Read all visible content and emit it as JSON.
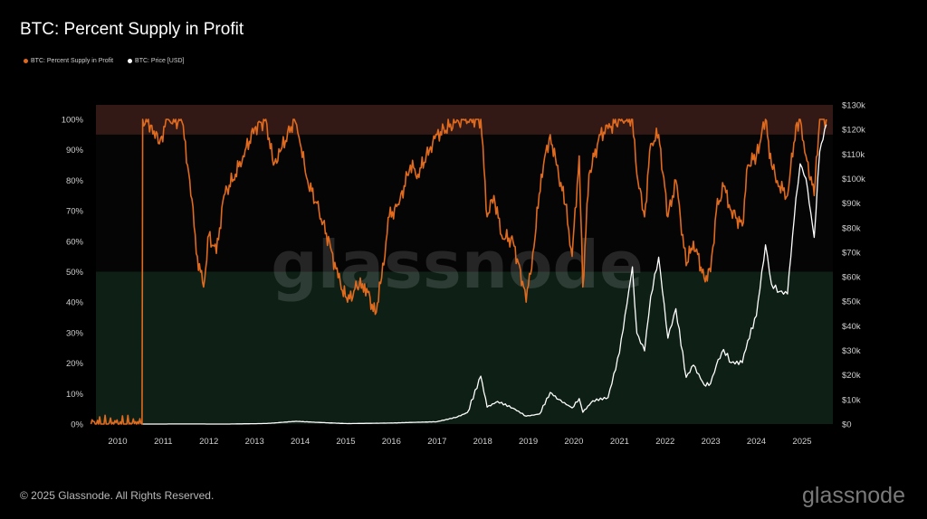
{
  "title": "BTC: Percent Supply in Profit",
  "legend": [
    {
      "label": "BTC: Percent Supply in Profit",
      "color": "#e06a1e"
    },
    {
      "label": "BTC: Price [USD]",
      "color": "#ffffff"
    }
  ],
  "watermark": "glassnode",
  "footer": "© 2025 Glassnode. All Rights Reserved.",
  "brand": "glassnode",
  "chart_data": {
    "type": "line",
    "title": "BTC: Percent Supply in Profit",
    "x_ticks": [
      "2010",
      "2011",
      "2012",
      "2013",
      "2014",
      "2015",
      "2016",
      "2017",
      "2018",
      "2019",
      "2020",
      "2021",
      "2022",
      "2023",
      "2024",
      "2025"
    ],
    "y_left_ticks": [
      "0%",
      "10%",
      "20%",
      "30%",
      "40%",
      "50%",
      "60%",
      "70%",
      "80%",
      "90%",
      "100%"
    ],
    "y_right_ticks": [
      "$0",
      "$10k",
      "$20k",
      "$30k",
      "$40k",
      "$50k",
      "$60k",
      "$70k",
      "$80k",
      "$90k",
      "$100k",
      "$110k",
      "$120k",
      "$130k"
    ],
    "y_left_range": [
      0,
      100
    ],
    "y_right_range": [
      0,
      130000
    ],
    "bands": [
      {
        "from": 95,
        "to": 100,
        "color": "#5a2a22"
      },
      {
        "from": 0,
        "to": 50,
        "color": "#0f2418"
      }
    ],
    "series": [
      {
        "name": "BTC: Percent Supply in Profit",
        "axis": "left",
        "color": "#e06a1e",
        "points": [
          [
            "2009-06-01",
            0
          ],
          [
            "2010-07-15",
            0
          ],
          [
            "2010-07-20",
            100
          ],
          [
            "2010-10-01",
            98
          ],
          [
            "2010-12-01",
            92
          ],
          [
            "2011-02-01",
            100
          ],
          [
            "2011-06-01",
            99
          ],
          [
            "2011-08-01",
            80
          ],
          [
            "2011-10-01",
            55
          ],
          [
            "2011-11-20",
            45
          ],
          [
            "2012-01-01",
            62
          ],
          [
            "2012-03-01",
            56
          ],
          [
            "2012-05-01",
            75
          ],
          [
            "2012-08-01",
            82
          ],
          [
            "2012-10-01",
            88
          ],
          [
            "2013-01-01",
            97
          ],
          [
            "2013-04-01",
            100
          ],
          [
            "2013-06-01",
            85
          ],
          [
            "2013-08-01",
            90
          ],
          [
            "2013-11-15",
            100
          ],
          [
            "2014-01-01",
            92
          ],
          [
            "2014-03-01",
            80
          ],
          [
            "2014-06-01",
            70
          ],
          [
            "2014-09-01",
            58
          ],
          [
            "2014-11-01",
            48
          ],
          [
            "2015-01-15",
            40
          ],
          [
            "2015-04-01",
            45
          ],
          [
            "2015-06-01",
            46
          ],
          [
            "2015-08-25",
            36
          ],
          [
            "2015-10-15",
            48
          ],
          [
            "2015-12-15",
            68
          ],
          [
            "2016-03-01",
            72
          ],
          [
            "2016-06-01",
            85
          ],
          [
            "2016-08-01",
            82
          ],
          [
            "2016-11-01",
            90
          ],
          [
            "2017-01-01",
            95
          ],
          [
            "2017-06-01",
            99
          ],
          [
            "2017-08-01",
            100
          ],
          [
            "2017-12-17",
            100
          ],
          [
            "2018-02-06",
            68
          ],
          [
            "2018-04-01",
            75
          ],
          [
            "2018-06-01",
            62
          ],
          [
            "2018-09-01",
            60
          ],
          [
            "2018-11-25",
            45
          ],
          [
            "2018-12-15",
            40
          ],
          [
            "2019-02-15",
            58
          ],
          [
            "2019-04-15",
            82
          ],
          [
            "2019-06-26",
            95
          ],
          [
            "2019-08-15",
            85
          ],
          [
            "2019-10-25",
            72
          ],
          [
            "2019-12-18",
            55
          ],
          [
            "2020-02-13",
            88
          ],
          [
            "2020-03-13",
            45
          ],
          [
            "2020-05-01",
            82
          ],
          [
            "2020-08-01",
            95
          ],
          [
            "2020-10-01",
            97
          ],
          [
            "2021-01-01",
            100
          ],
          [
            "2021-04-14",
            100
          ],
          [
            "2021-05-19",
            82
          ],
          [
            "2021-07-20",
            68
          ],
          [
            "2021-09-07",
            92
          ],
          [
            "2021-11-10",
            95
          ],
          [
            "2022-01-23",
            68
          ],
          [
            "2022-03-28",
            80
          ],
          [
            "2022-06-18",
            52
          ],
          [
            "2022-08-15",
            60
          ],
          [
            "2022-11-09",
            48
          ],
          [
            "2022-12-30",
            50
          ],
          [
            "2023-02-15",
            70
          ],
          [
            "2023-04-14",
            78
          ],
          [
            "2023-06-15",
            70
          ],
          [
            "2023-09-11",
            65
          ],
          [
            "2023-10-24",
            85
          ],
          [
            "2024-01-01",
            88
          ],
          [
            "2024-03-14",
            100
          ],
          [
            "2024-05-01",
            85
          ],
          [
            "2024-07-05",
            78
          ],
          [
            "2024-09-06",
            75
          ],
          [
            "2024-11-13",
            98
          ],
          [
            "2024-12-17",
            100
          ],
          [
            "2025-02-01",
            88
          ],
          [
            "2025-04-08",
            75
          ],
          [
            "2025-05-22",
            100
          ],
          [
            "2025-07-14",
            100
          ]
        ]
      },
      {
        "name": "BTC: Price [USD]",
        "axis": "right",
        "color": "#ffffff",
        "points": [
          [
            "2010-07-20",
            0
          ],
          [
            "2011-06-08",
            30
          ],
          [
            "2012-06-01",
            6
          ],
          [
            "2013-04-09",
            230
          ],
          [
            "2013-11-30",
            1130
          ],
          [
            "2014-06-01",
            650
          ],
          [
            "2015-01-14",
            180
          ],
          [
            "2016-01-01",
            430
          ],
          [
            "2016-12-31",
            960
          ],
          [
            "2017-06-12",
            2900
          ],
          [
            "2017-09-01",
            4700
          ],
          [
            "2017-12-17",
            19500
          ],
          [
            "2018-02-06",
            6900
          ],
          [
            "2018-05-01",
            9200
          ],
          [
            "2018-09-01",
            6500
          ],
          [
            "2018-12-15",
            3200
          ],
          [
            "2019-04-01",
            4100
          ],
          [
            "2019-06-26",
            12900
          ],
          [
            "2019-09-01",
            10000
          ],
          [
            "2019-12-18",
            6600
          ],
          [
            "2020-02-13",
            10400
          ],
          [
            "2020-03-13",
            4800
          ],
          [
            "2020-06-01",
            9500
          ],
          [
            "2020-10-01",
            10800
          ],
          [
            "2020-12-31",
            29000
          ],
          [
            "2021-04-14",
            64000
          ],
          [
            "2021-05-19",
            37000
          ],
          [
            "2021-07-20",
            29800
          ],
          [
            "2021-09-07",
            52000
          ],
          [
            "2021-11-10",
            68000
          ],
          [
            "2022-01-23",
            35000
          ],
          [
            "2022-03-28",
            47000
          ],
          [
            "2022-06-18",
            19000
          ],
          [
            "2022-08-15",
            24000
          ],
          [
            "2022-11-09",
            16000
          ],
          [
            "2022-12-30",
            16500
          ],
          [
            "2023-02-15",
            24000
          ],
          [
            "2023-04-14",
            30400
          ],
          [
            "2023-06-15",
            25000
          ],
          [
            "2023-09-11",
            25000
          ],
          [
            "2023-10-24",
            34000
          ],
          [
            "2024-01-01",
            44000
          ],
          [
            "2024-03-14",
            73000
          ],
          [
            "2024-05-01",
            57000
          ],
          [
            "2024-07-05",
            54000
          ],
          [
            "2024-09-06",
            53000
          ],
          [
            "2024-11-13",
            92000
          ],
          [
            "2024-12-17",
            106000
          ],
          [
            "2025-02-01",
            100000
          ],
          [
            "2025-04-08",
            76000
          ],
          [
            "2025-05-22",
            111000
          ],
          [
            "2025-07-14",
            122000
          ]
        ]
      }
    ]
  }
}
